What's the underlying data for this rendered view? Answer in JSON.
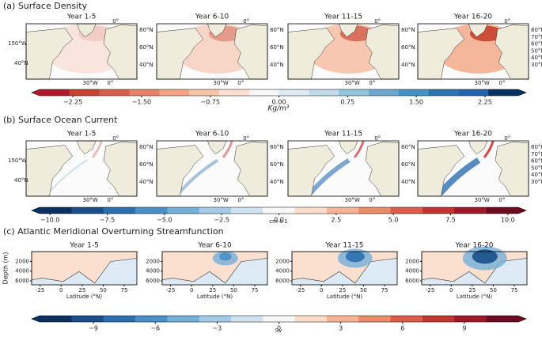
{
  "rows": [
    {
      "title": "(a) Surface Density",
      "kind": "map",
      "panels": [
        {
          "title": "Year 1-5",
          "top": "0°",
          "right": [
            "80°N",
            "60°N",
            "40°N"
          ],
          "left": [
            "150°W",
            "40°N"
          ],
          "bottom": [
            "30°W",
            "0°"
          ]
        },
        {
          "title": "Year 6-10",
          "top": "0°",
          "right": [
            "80°N",
            "60°N",
            "40°N"
          ],
          "bottom": [
            "30°W",
            "0°"
          ]
        },
        {
          "title": "Year 11-15",
          "top": "0°",
          "right": [
            "80°N",
            "60°N",
            "40°N"
          ],
          "bottom": [
            "30°W",
            "0°"
          ]
        },
        {
          "title": "Year 16-20",
          "top": "0°",
          "right": [
            "80°N",
            "70°N",
            "60°N",
            "50°N",
            "40°N",
            "30°N"
          ],
          "bottom": [
            "30°W",
            "0°"
          ]
        }
      ],
      "colorbar": {
        "lim": [
          -2.7,
          2.7
        ],
        "label": "Kg/m³",
        "colormap": [
          "#b2182b",
          "#c8432f",
          "#d6604d",
          "#e58267",
          "#f4a582",
          "#f8c4a8",
          "#fbe0d0",
          "#f7f7f7",
          "#dceaf3",
          "#c0dcec",
          "#92c5de",
          "#6aa8d0",
          "#4393c3",
          "#2c74b0",
          "#2166ac",
          "#053061"
        ],
        "ticks": [
          {
            "value": -2.25,
            "label": "−2.25"
          },
          {
            "value": -1.5,
            "label": "−1.50"
          },
          {
            "value": -0.75,
            "label": "−0.75"
          },
          {
            "value": 0,
            "label": "0.00"
          },
          {
            "value": 0.75,
            "label": "0.75"
          },
          {
            "value": 1.5,
            "label": "1.50"
          },
          {
            "value": 2.25,
            "label": "2.25"
          }
        ]
      }
    },
    {
      "title": "(b) Surface Ocean Current",
      "kind": "map",
      "panels": [
        {
          "title": "Year 1-5",
          "top": "0°",
          "right": [
            "80°N",
            "60°N",
            "40°N"
          ],
          "left": [
            "150°W",
            "40°N"
          ],
          "bottom": [
            "30°W",
            "0°"
          ]
        },
        {
          "title": "Year 6-10",
          "top": "0°",
          "right": [
            "80°N",
            "60°N",
            "40°N"
          ],
          "bottom": [
            "30°W",
            "0°"
          ]
        },
        {
          "title": "Year 11-15",
          "top": "0°",
          "right": [
            "80°N",
            "60°N",
            "40°N"
          ],
          "bottom": [
            "30°W",
            "0°"
          ]
        },
        {
          "title": "Year 16-20",
          "top": "0°",
          "right": [
            "80°N",
            "70°N",
            "60°N",
            "50°N",
            "40°N",
            "30°N"
          ],
          "bottom": [
            "30°W",
            "0°"
          ]
        }
      ],
      "colorbar": {
        "lim": [
          -10.8,
          10.8
        ],
        "label": "cm s-1",
        "colormap": [
          "#0b2f5e",
          "#1a4f8a",
          "#2c6fb0",
          "#4a90c8",
          "#74afd8",
          "#a3cbe6",
          "#cfe2f1",
          "#f7f7f7",
          "#fbdcc8",
          "#f6b494",
          "#ec8b68",
          "#da5d48",
          "#c1352f",
          "#9c1a28",
          "#6d0a20"
        ],
        "ticks": [
          {
            "value": -10,
            "label": "−10.0"
          },
          {
            "value": -7.5,
            "label": "−7.5"
          },
          {
            "value": -5,
            "label": "−5.0"
          },
          {
            "value": -2.5,
            "label": "−2.5"
          },
          {
            "value": 0,
            "label": "0.0"
          },
          2.5,
          {
            "value": 5,
            "label": "5.0"
          },
          7.5,
          {
            "value": 10,
            "label": "10.0"
          }
        ]
      }
    },
    {
      "title": "(c) Atlantic Meridional Overturning Streamfunction",
      "kind": "section",
      "ylabel": "Depth (m)",
      "xlabel": "Latitude (°N)",
      "xlim": [
        -35,
        90
      ],
      "xticks": [
        -25,
        0,
        25,
        50,
        75
      ],
      "ylim": [
        0,
        6800
      ],
      "yticks": [
        2000,
        4000,
        6000
      ],
      "panels": [
        {
          "title": "Year 1-5"
        },
        {
          "title": "Year 6-10"
        },
        {
          "title": "Year 11-15"
        },
        {
          "title": "Year 16-20"
        }
      ],
      "colorbar": {
        "lim": [
          -12,
          12
        ],
        "label": "Sv",
        "colormap": [
          "#0b2f5e",
          "#1a4f8a",
          "#2c6fb0",
          "#4a90c8",
          "#74afd8",
          "#a3cbe6",
          "#cfe2f1",
          "#f7f7f7",
          "#fbdcc8",
          "#f6b494",
          "#ec8b68",
          "#da5d48",
          "#c1352f",
          "#9c1a28",
          "#6d0a20"
        ],
        "ticks": [
          {
            "value": -9,
            "label": "−9"
          },
          {
            "value": -6,
            "label": "−6"
          },
          {
            "value": -3,
            "label": "−3"
          },
          0,
          3,
          6,
          9
        ]
      }
    }
  ]
}
